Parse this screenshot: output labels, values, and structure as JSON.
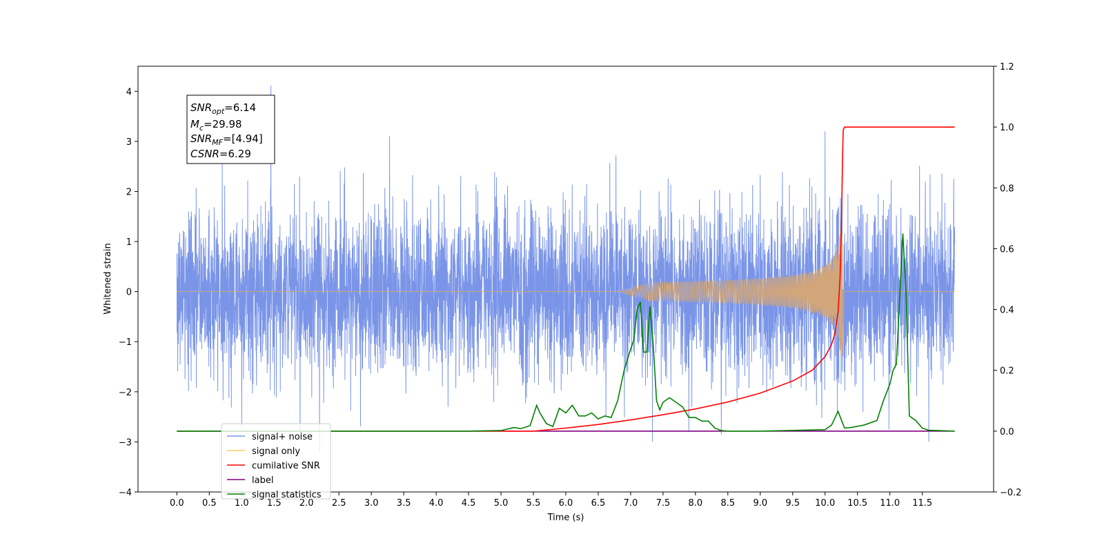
{
  "chart_data": {
    "type": "line",
    "xlabel": "Time (s)",
    "ylabel": "Whitened strain",
    "xlim": [
      -0.6,
      12.6
    ],
    "ylim": [
      -4,
      4.5
    ],
    "y2lim": [
      -0.2,
      1.2
    ],
    "x_ticks": [
      "0.0",
      "0.5",
      "1.0",
      "1.5",
      "2.0",
      "2.5",
      "3.0",
      "3.5",
      "4.0",
      "4.5",
      "5.0",
      "5.5",
      "6.0",
      "6.5",
      "7.0",
      "7.5",
      "8.0",
      "8.5",
      "9.0",
      "9.5",
      "10.0",
      "10.5",
      "11.0",
      "11.5"
    ],
    "y_ticks": [
      "−4",
      "−3",
      "−2",
      "−1",
      "0",
      "1",
      "2",
      "3",
      "4"
    ],
    "y2_ticks": [
      "−0.2",
      "0.0",
      "0.2",
      "0.4",
      "0.6",
      "0.8",
      "1.0",
      "1.2"
    ],
    "info_box": {
      "snr_opt": {
        "base": "SNR",
        "sub": "opt",
        "value": "=6.14"
      },
      "mc": {
        "base": "M",
        "sub": "c",
        "value": "=29.98"
      },
      "snr_mf": {
        "base": "SNR",
        "sub": "MF",
        "value": "=[4.94]"
      },
      "csnr": {
        "base": "CSNR",
        "value": "=6.29"
      }
    },
    "legend": {
      "placement": "lower-left",
      "entries": [
        {
          "label": "signal+ noise",
          "color": "#7a95e8"
        },
        {
          "label": "signal only",
          "color": "#ffc966"
        },
        {
          "label": "cumilative SNR",
          "color": "#ff0000"
        },
        {
          "label": "label",
          "color": "#800080"
        },
        {
          "label": "signal statistics",
          "color": "#008000"
        }
      ]
    },
    "series": [
      {
        "name": "signal+ noise",
        "axis": "left",
        "color": "#7a95e8",
        "x_range": [
          0,
          12
        ],
        "noise_sigma": 0.82,
        "spikes": [
          [
            1.45,
            4.12
          ],
          [
            3.28,
            3.1
          ],
          [
            10.0,
            3.2
          ],
          [
            11.6,
            3.0
          ],
          [
            1.0,
            -2.7
          ],
          [
            1.9,
            -2.9
          ],
          [
            2.2,
            -3.2
          ],
          [
            11.6,
            -3.0
          ],
          [
            8.4,
            -2.85
          ],
          [
            7.9,
            -2.8
          ]
        ]
      },
      {
        "name": "signal only",
        "axis": "left",
        "color": "#ffc966",
        "x_range": [
          0,
          10.28
        ],
        "chirp_end_amplitude": 1.3
      },
      {
        "name": "cumilative SNR",
        "axis": "right",
        "color": "#ff0000",
        "x": [
          0,
          5.5,
          6.0,
          6.5,
          7.0,
          7.5,
          8.0,
          8.5,
          9.0,
          9.5,
          9.8,
          10.0,
          10.1,
          10.15,
          10.2,
          10.23,
          10.25,
          10.27,
          10.28,
          10.3,
          12.0
        ],
        "y": [
          0,
          0,
          0.01,
          0.022,
          0.037,
          0.054,
          0.073,
          0.096,
          0.125,
          0.165,
          0.2,
          0.245,
          0.285,
          0.32,
          0.39,
          0.5,
          0.65,
          0.9,
          0.99,
          1.0,
          1.0
        ]
      },
      {
        "name": "label",
        "axis": "right",
        "color": "#800080",
        "x": [
          0,
          12
        ],
        "y": [
          0,
          0
        ]
      },
      {
        "name": "signal statistics",
        "axis": "right",
        "color": "#008000",
        "x": [
          0,
          4.5,
          5.0,
          5.2,
          5.3,
          5.45,
          5.55,
          5.6,
          5.7,
          5.8,
          5.9,
          6.0,
          6.1,
          6.2,
          6.3,
          6.4,
          6.5,
          6.6,
          6.7,
          6.8,
          6.9,
          7.0,
          7.05,
          7.1,
          7.15,
          7.2,
          7.25,
          7.3,
          7.35,
          7.4,
          7.45,
          7.5,
          7.6,
          7.7,
          7.8,
          7.9,
          8.0,
          8.1,
          8.2,
          8.3,
          8.4,
          8.5,
          9.0,
          10.0,
          10.1,
          10.2,
          10.3,
          10.4,
          10.6,
          10.8,
          10.9,
          11.0,
          11.05,
          11.1,
          11.2,
          11.25,
          11.3,
          11.4,
          11.5,
          11.6,
          12.0
        ],
        "y": [
          0,
          0,
          0.002,
          0.012,
          0.008,
          0.018,
          0.085,
          0.06,
          0.025,
          0.015,
          0.075,
          0.06,
          0.085,
          0.05,
          0.05,
          0.06,
          0.04,
          0.05,
          0.045,
          0.1,
          0.2,
          0.27,
          0.3,
          0.4,
          0.425,
          0.26,
          0.26,
          0.41,
          0.28,
          0.1,
          0.07,
          0.095,
          0.11,
          0.095,
          0.08,
          0.045,
          0.045,
          0.033,
          0.033,
          0.01,
          0.002,
          0,
          0,
          0.005,
          0.02,
          0.065,
          0.01,
          0.012,
          0.02,
          0.035,
          0.1,
          0.155,
          0.2,
          0.22,
          0.65,
          0.45,
          0.05,
          0.035,
          0.01,
          0.003,
          0
        ]
      }
    ]
  }
}
